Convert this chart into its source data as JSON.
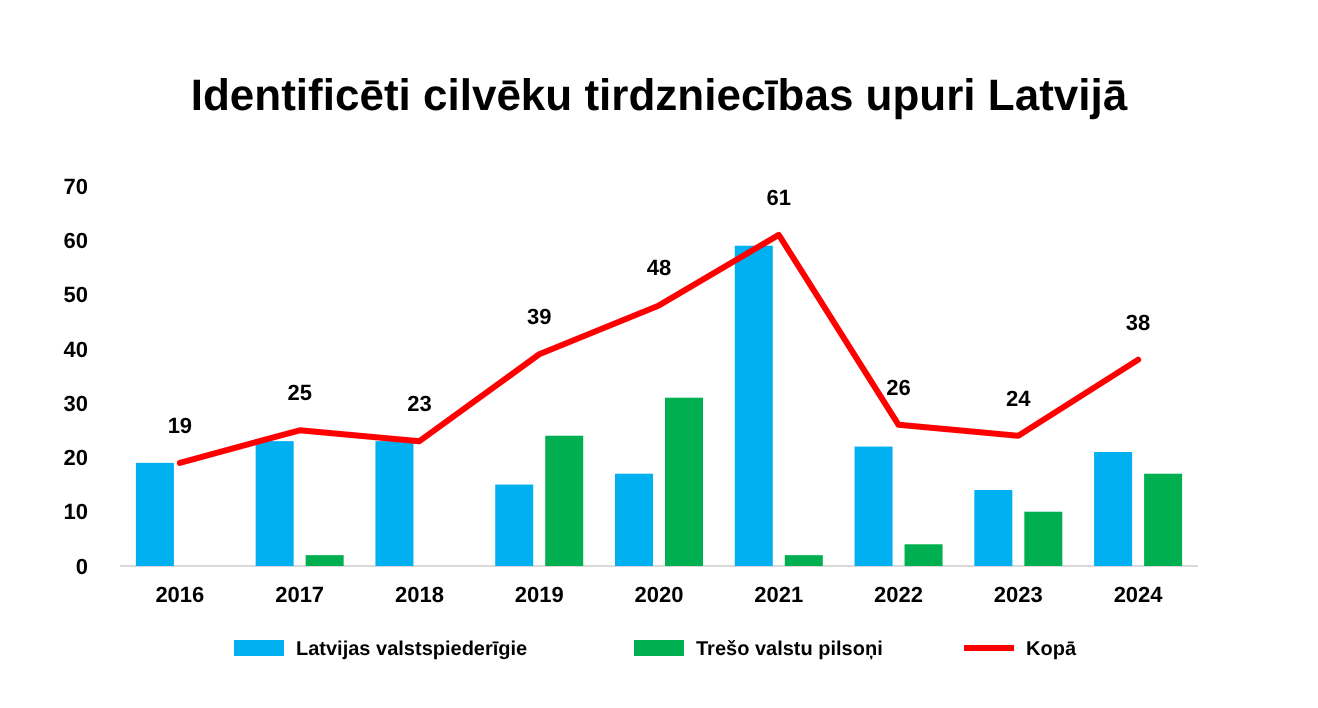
{
  "chart_data": {
    "type": "bar",
    "title": "Identificēti cilvēku tirdzniecības upuri Latvijā",
    "categories": [
      "2016",
      "2017",
      "2018",
      "2019",
      "2020",
      "2021",
      "2022",
      "2023",
      "2024"
    ],
    "ylim": [
      0,
      70
    ],
    "yticks": [
      0,
      10,
      20,
      30,
      40,
      50,
      60,
      70
    ],
    "grid": false,
    "legend": "bottom",
    "series": [
      {
        "name": "Latvijas valstspiederīgie",
        "color": "#00b0f0",
        "values": [
          19,
          23,
          23,
          15,
          17,
          59,
          22,
          14,
          21
        ]
      },
      {
        "name": "Trešo valstu pilsoņi",
        "color": "#00b050",
        "values": [
          0,
          2,
          0,
          24,
          31,
          2,
          4,
          10,
          17
        ]
      },
      {
        "name": "Kopā",
        "type": "line",
        "color": "#ff0000",
        "values": [
          19,
          25,
          23,
          39,
          48,
          61,
          26,
          24,
          38
        ],
        "value_labels": [
          "19",
          "25",
          "23",
          "39",
          "48",
          "61",
          "26",
          "24",
          "38"
        ]
      }
    ]
  }
}
